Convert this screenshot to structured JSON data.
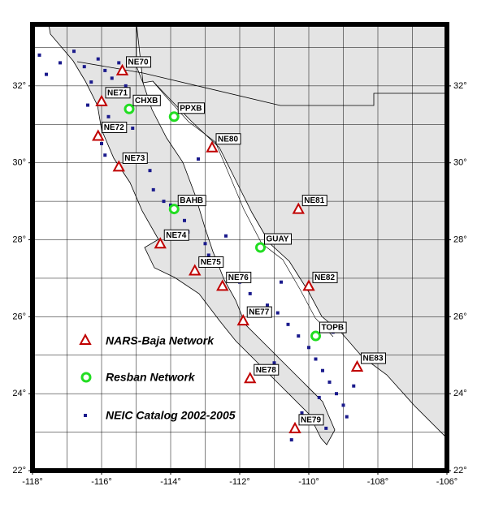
{
  "map": {
    "xlim": [
      -118,
      -106
    ],
    "ylim": [
      22,
      33.6
    ],
    "xticks": [
      {
        "value": -118,
        "label": "-118°"
      },
      {
        "value": -116,
        "label": "-116°"
      },
      {
        "value": -114,
        "label": "-114°"
      },
      {
        "value": -112,
        "label": "-112°"
      },
      {
        "value": -110,
        "label": "-110°"
      },
      {
        "value": -108,
        "label": "-108°"
      },
      {
        "value": -106,
        "label": "-106°"
      }
    ],
    "yticks": [
      {
        "value": 22,
        "label": "22°"
      },
      {
        "value": 24,
        "label": "24°"
      },
      {
        "value": 26,
        "label": "26°"
      },
      {
        "value": 28,
        "label": "28°"
      },
      {
        "value": 30,
        "label": "30°"
      },
      {
        "value": 32,
        "label": "32°"
      }
    ],
    "xgrid": [
      -117,
      -116,
      -115,
      -114,
      -113,
      -112,
      -111,
      -110,
      -109,
      -108,
      -107
    ],
    "ygrid": [
      23,
      24,
      25,
      26,
      27,
      28,
      29,
      30,
      31,
      32,
      33
    ],
    "stations": [
      {
        "name": "NE70",
        "network": 0,
        "lon": -115.4,
        "lat": 32.4
      },
      {
        "name": "NE71",
        "network": 0,
        "lon": -116.0,
        "lat": 31.6
      },
      {
        "name": "CHXB",
        "network": 1,
        "lon": -115.2,
        "lat": 31.4
      },
      {
        "name": "PPXB",
        "network": 1,
        "lon": -113.9,
        "lat": 31.2
      },
      {
        "name": "NE72",
        "network": 0,
        "lon": -116.1,
        "lat": 30.7
      },
      {
        "name": "NE80",
        "network": 0,
        "lon": -112.8,
        "lat": 30.4
      },
      {
        "name": "NE73",
        "network": 0,
        "lon": -115.5,
        "lat": 29.9
      },
      {
        "name": "BAHB",
        "network": 1,
        "lon": -113.9,
        "lat": 28.8
      },
      {
        "name": "NE81",
        "network": 0,
        "lon": -110.3,
        "lat": 28.8
      },
      {
        "name": "NE74",
        "network": 0,
        "lon": -114.3,
        "lat": 27.9
      },
      {
        "name": "GUAY",
        "network": 1,
        "lon": -111.4,
        "lat": 27.8
      },
      {
        "name": "NE75",
        "network": 0,
        "lon": -113.3,
        "lat": 27.2
      },
      {
        "name": "NE76",
        "network": 0,
        "lon": -112.5,
        "lat": 26.8
      },
      {
        "name": "NE82",
        "network": 0,
        "lon": -110.0,
        "lat": 26.8
      },
      {
        "name": "NE77",
        "network": 0,
        "lon": -111.9,
        "lat": 25.9
      },
      {
        "name": "TOPB",
        "network": 1,
        "lon": -109.8,
        "lat": 25.5
      },
      {
        "name": "NE83",
        "network": 0,
        "lon": -108.6,
        "lat": 24.7
      },
      {
        "name": "NE78",
        "network": 0,
        "lon": -111.7,
        "lat": 24.4
      },
      {
        "name": "NE79",
        "network": 0,
        "lon": -110.4,
        "lat": 23.1
      }
    ],
    "legend": [
      "NARS-Baja Network",
      "Resban Network",
      "NEIC Catalog 2002-2005"
    ],
    "events": {
      "lon": [
        -117.8,
        -117.6,
        -117.2,
        -116.8,
        -116.5,
        -116.3,
        -116.1,
        -115.9,
        -115.7,
        -115.5,
        -115.6,
        -115.3,
        -115.8,
        -116.4,
        -116.0,
        -115.9,
        -115.1,
        -114.6,
        -114.5,
        -114.2,
        -113.6,
        -113.5,
        -113.0,
        -112.9,
        -112.6,
        -112.2,
        -112.0,
        -111.7,
        -111.2,
        -110.9,
        -110.6,
        -110.3,
        -110.0,
        -109.8,
        -109.6,
        -109.4,
        -109.2,
        -109.0,
        -108.9,
        -109.5,
        -110.2,
        -111.0,
        -110.8,
        -109.3,
        -108.7,
        -109.7,
        -110.5,
        -112.4,
        -113.2,
        -114.0
      ],
      "lat": [
        32.8,
        32.3,
        32.6,
        32.9,
        32.5,
        32.1,
        32.7,
        32.4,
        32.2,
        32.6,
        31.9,
        32.0,
        31.2,
        31.5,
        30.5,
        30.2,
        30.9,
        29.8,
        29.3,
        29.0,
        28.5,
        28.2,
        27.9,
        27.6,
        27.4,
        27.1,
        26.9,
        26.6,
        26.3,
        26.1,
        25.8,
        25.5,
        25.2,
        24.9,
        24.6,
        24.3,
        24.0,
        23.7,
        23.4,
        23.1,
        23.5,
        24.8,
        26.9,
        25.6,
        24.2,
        23.9,
        22.8,
        28.1,
        30.1,
        28.9
      ]
    }
  }
}
